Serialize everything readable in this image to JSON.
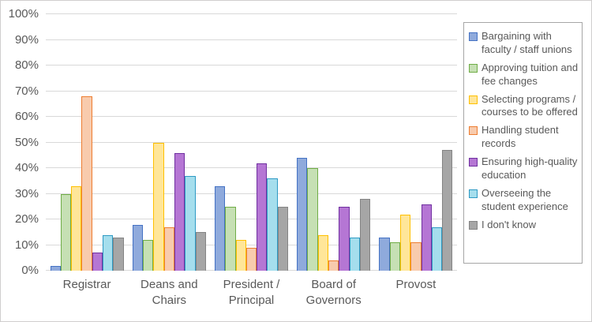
{
  "chart_data": {
    "type": "bar",
    "categories": [
      "Registrar",
      "Deans and Chairs",
      "President / Principal",
      "Board of Governors",
      "Provost"
    ],
    "series": [
      {
        "name": "Bargaining with faculty / staff unions",
        "fill": "#8FAADC",
        "border": "#4472C4",
        "values": [
          2,
          18,
          33,
          44,
          13
        ]
      },
      {
        "name": "Approving tuition and fee changes",
        "fill": "#C6E0B4",
        "border": "#70AD47",
        "values": [
          30,
          12,
          25,
          40,
          11
        ]
      },
      {
        "name": "Selecting programs / courses to be offered",
        "fill": "#FFE699",
        "border": "#FFC000",
        "values": [
          33,
          50,
          12,
          14,
          22
        ]
      },
      {
        "name": "Handling student records",
        "fill": "#F8CBAD",
        "border": "#ED7D31",
        "values": [
          68,
          17,
          9,
          4,
          11
        ]
      },
      {
        "name": "Ensuring high-quality education",
        "fill": "#B576D4",
        "border": "#7030A0",
        "values": [
          7,
          46,
          42,
          25,
          26
        ]
      },
      {
        "name": "Overseeing the student experience",
        "fill": "#A5DEED",
        "border": "#2E9AC4",
        "values": [
          14,
          37,
          36,
          13,
          17
        ]
      },
      {
        "name": "I don't know",
        "fill": "#A6A6A6",
        "border": "#848484",
        "values": [
          13,
          15,
          25,
          28,
          47
        ]
      }
    ],
    "ylim": [
      0,
      100
    ],
    "ytick_step": 10,
    "ytick_labels": [
      "0%",
      "10%",
      "20%",
      "30%",
      "40%",
      "50%",
      "60%",
      "70%",
      "80%",
      "90%",
      "100%"
    ],
    "grid": true,
    "legend_position": "right"
  },
  "style": {
    "background": "#FFFFFF",
    "text_color": "#595959",
    "gridline_color": "#D9D9D9",
    "legend_border_color": "#A6A6A6",
    "frame_border_color": "#D0CECE"
  }
}
